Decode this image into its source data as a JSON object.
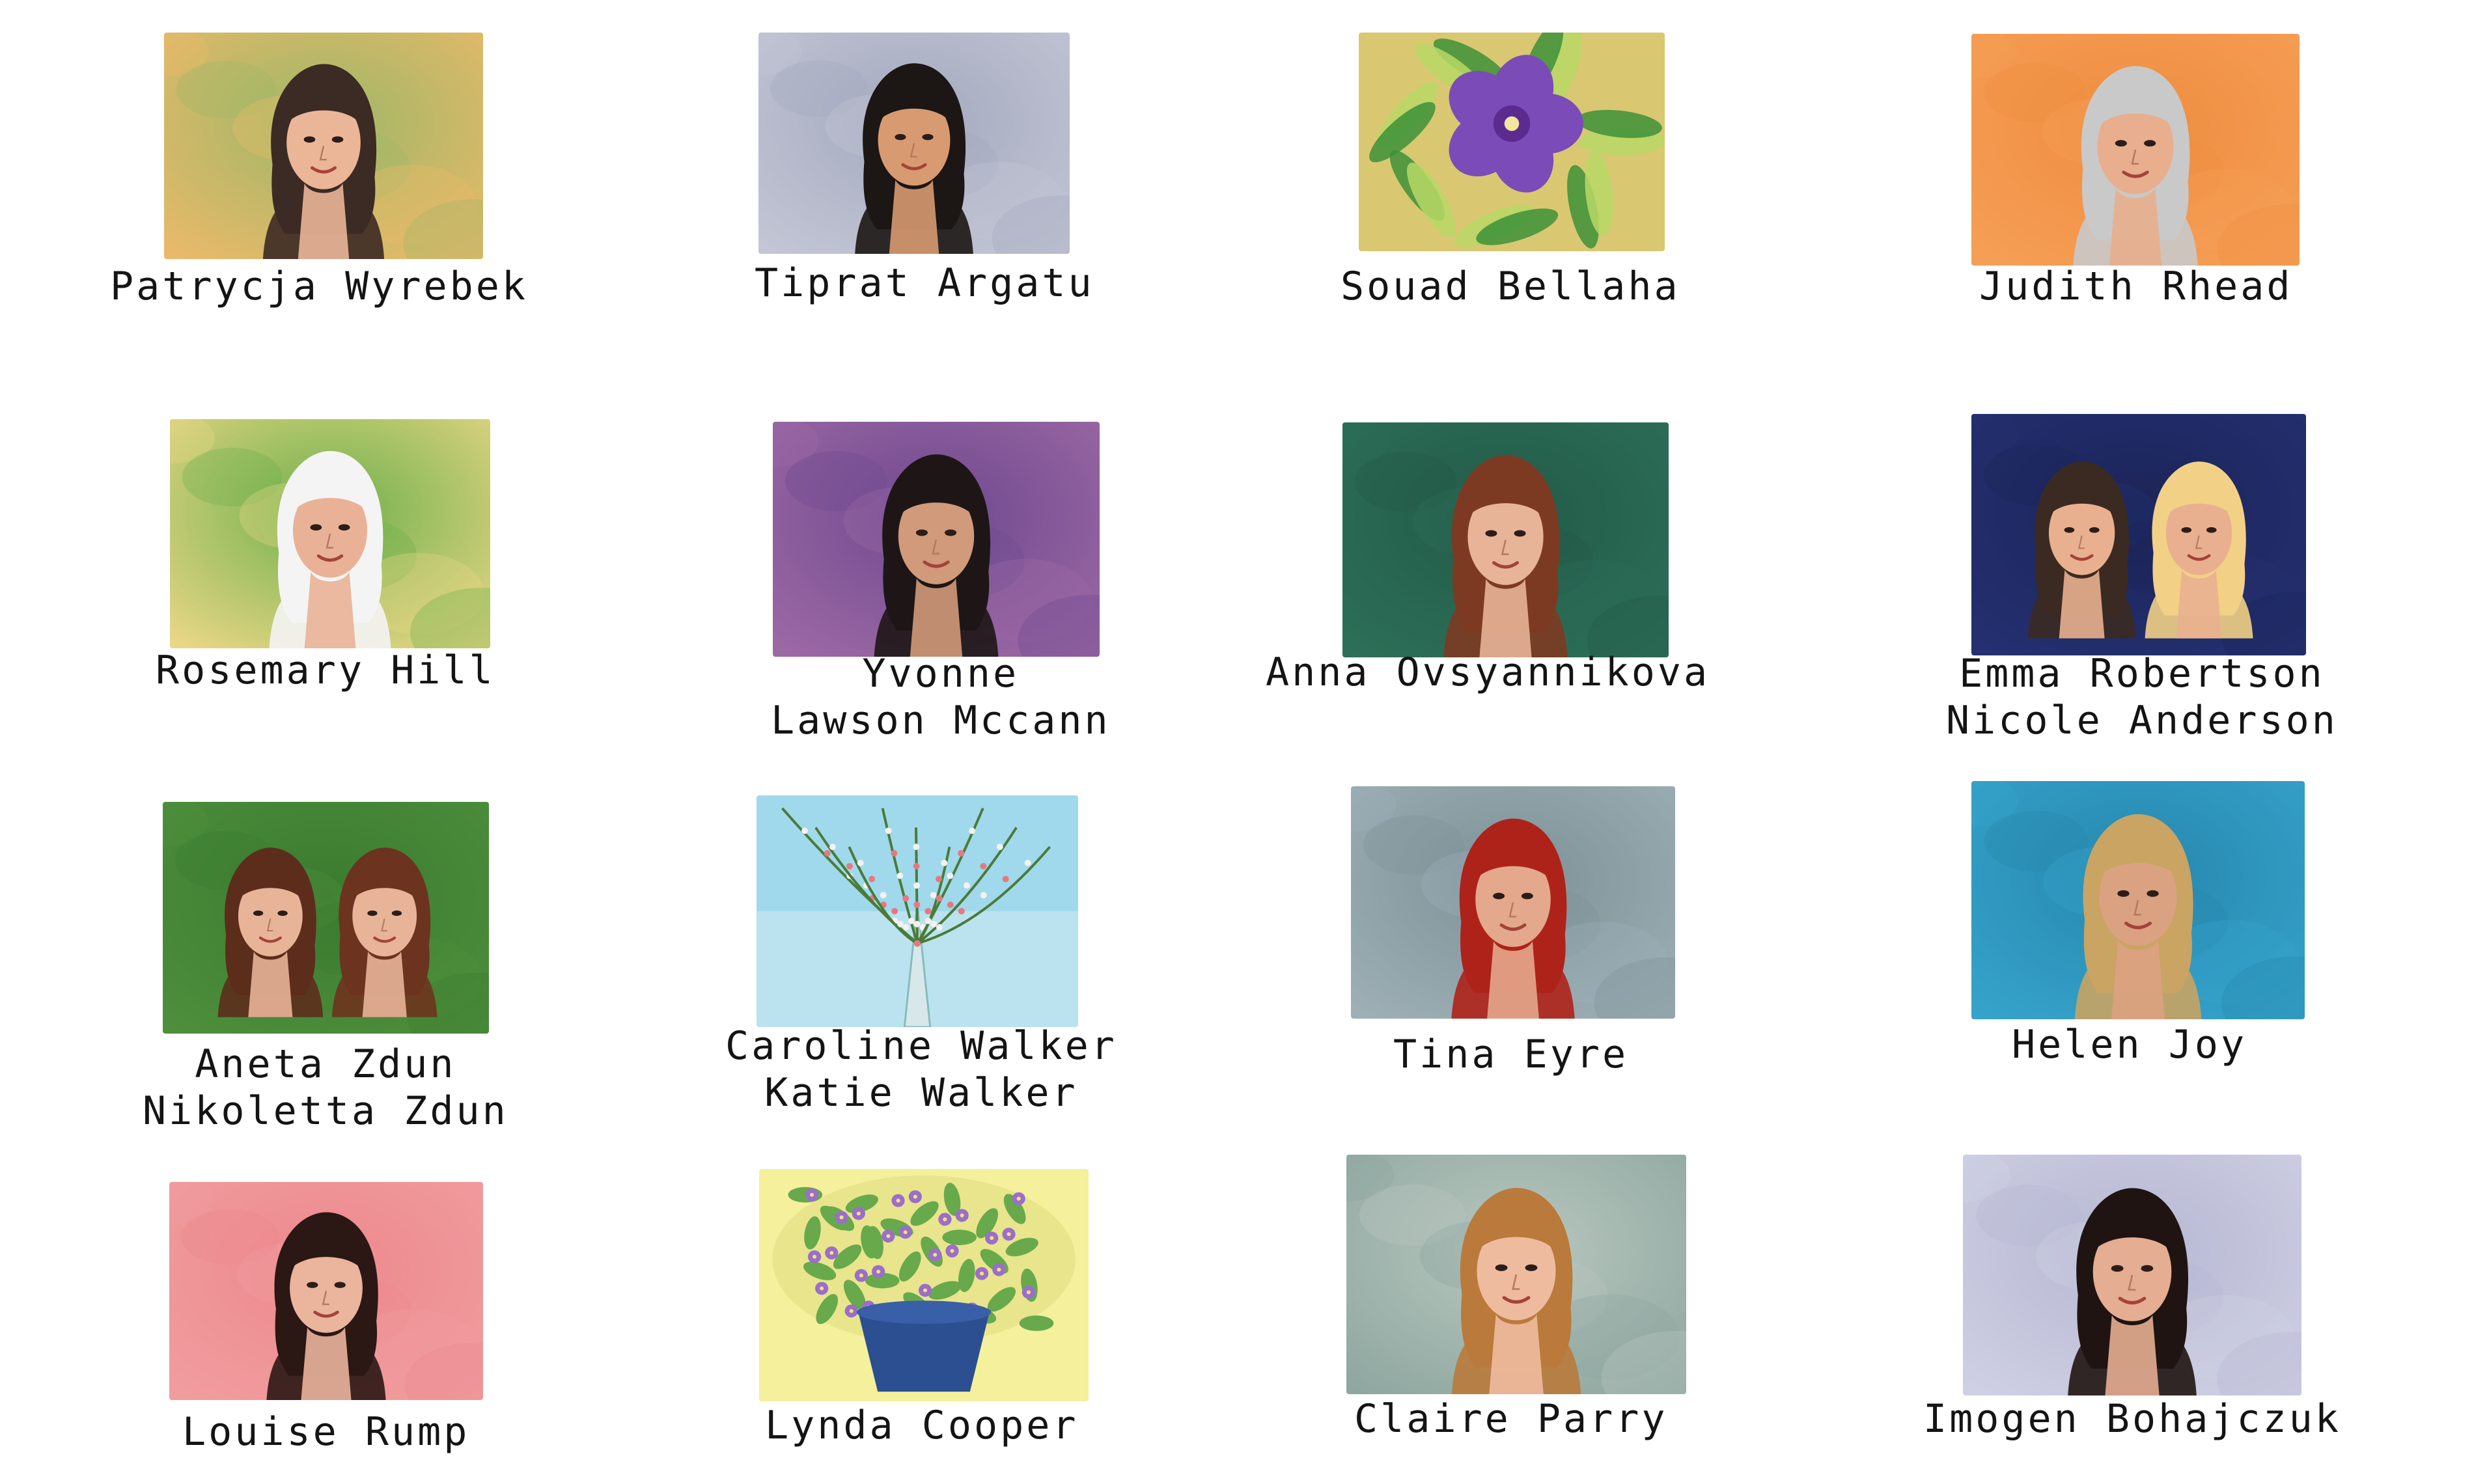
{
  "gallery": {
    "portraits": [
      {
        "subject": "portrait",
        "names": [
          "Patrycja Wyrebek"
        ],
        "palette": [
          "#e8b96e",
          "#9db86a",
          "#3b2a24",
          "#7a3e22",
          "#e9b69a"
        ]
      },
      {
        "subject": "portrait",
        "names": [
          "Tiprat Argatu"
        ],
        "palette": [
          "#c3c6d4",
          "#a4a9bd",
          "#1c1614",
          "#1c1614",
          "#d59a73"
        ]
      },
      {
        "subject": "flower-painting",
        "names": [
          "Souad Bellaha"
        ],
        "palette": [
          "#d9c776",
          "#3f8f3c",
          "#7a4cb3",
          "#5a2c8c",
          "#b9d76b"
        ]
      },
      {
        "subject": "portrait",
        "names": [
          "Judith Rhead"
        ],
        "palette": [
          "#f2a05a",
          "#ea8e44",
          "#c9c9c9",
          "#c9c9c9",
          "#e6ae8f"
        ]
      },
      {
        "subject": "portrait",
        "names": [
          "Rosemary Hill"
        ],
        "palette": [
          "#e8d78a",
          "#6fae4f",
          "#f4f4f4",
          "#e8e8e8",
          "#e7b299"
        ]
      },
      {
        "subject": "portrait",
        "names": [
          "Yvonne",
          "Lawson Mccann"
        ],
        "palette": [
          "#9b6aa3",
          "#6e4a8c",
          "#1e1616",
          "#1e1616",
          "#cf9a7c"
        ]
      },
      {
        "subject": "portrait",
        "names": [
          "Anna Ovsyannikova"
        ],
        "palette": [
          "#2f6e58",
          "#245a49",
          "#7a3b24",
          "#8a4a2c",
          "#e6b49a"
        ]
      },
      {
        "subject": "double-portrait",
        "names": [
          "Emma Robertson",
          "Nicole Anderson"
        ],
        "palette": [
          "#25306e",
          "#1d2456",
          "#3a2a22",
          "#f0d08a",
          "#e7b092"
        ]
      },
      {
        "subject": "double-portrait",
        "names": [
          "Aneta Zdun",
          "Nikoletta Zdun"
        ],
        "palette": [
          "#4f8e3f",
          "#3d7a33",
          "#5b2d1d",
          "#6a3420",
          "#e6b49a"
        ]
      },
      {
        "subject": "branch-painting",
        "names": [
          "Caroline Walker",
          "Katie Walker"
        ],
        "palette": [
          "#8fd1e8",
          "#bde3ee",
          "#4c7a3a",
          "#f2f2f2",
          "#e07a82"
        ]
      },
      {
        "subject": "portrait",
        "names": [
          "Tina Eyre"
        ],
        "palette": [
          "#9fb0b6",
          "#7e9197",
          "#a8241c",
          "#b52a20",
          "#e2a98e"
        ]
      },
      {
        "subject": "portrait",
        "names": [
          "Helen Joy"
        ],
        "palette": [
          "#3aa2c8",
          "#2b86aa",
          "#c7a466",
          "#1c1c1c",
          "#d9a283"
        ]
      },
      {
        "subject": "portrait",
        "names": [
          "Louise Rump"
        ],
        "palette": [
          "#ee9ea0",
          "#e98a8e",
          "#2a1714",
          "#2a1714",
          "#e8b49f"
        ]
      },
      {
        "subject": "flower-pot-painting",
        "names": [
          "Lynda Cooper"
        ],
        "palette": [
          "#e2e08a",
          "#6aa84f",
          "#2d4f8e",
          "#9a6fc7",
          "#f4f0a0"
        ]
      },
      {
        "subject": "portrait",
        "names": [
          "Claire Parry"
        ],
        "palette": [
          "#8fa7a0",
          "#b9c7bf",
          "#b77a3e",
          "#c88a48",
          "#edbba1"
        ]
      },
      {
        "subject": "portrait",
        "names": [
          "Imogen Bohajczuk"
        ],
        "palette": [
          "#cfd0e3",
          "#b6b7d1",
          "#1f1412",
          "#1f1412",
          "#e3ad93"
        ]
      }
    ]
  }
}
